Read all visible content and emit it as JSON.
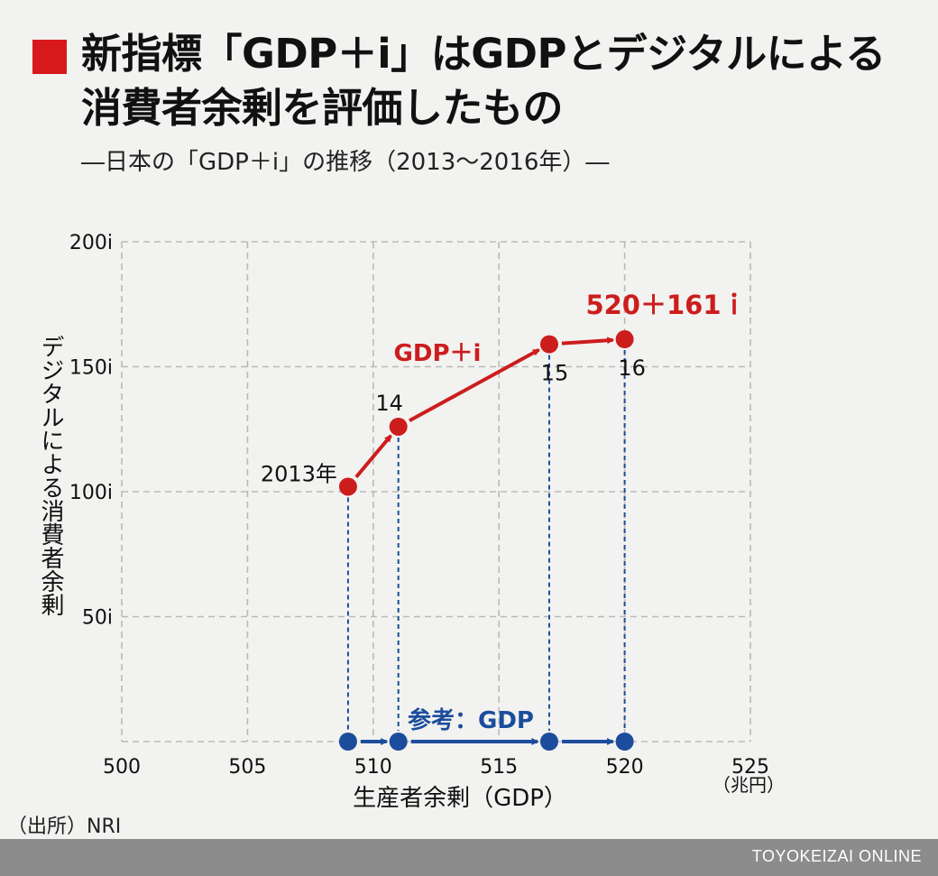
{
  "title": "新指標「GDP＋i」はGDPとデジタルによる\n消費者余剰を評価したもの",
  "subtitle": "―日本の「GDP＋i」の推移（2013〜2016年）―",
  "source": "（出所）NRI",
  "footer": "TOYOKEIZAI ONLINE",
  "colors": {
    "title_mark": "#d7191c",
    "gdp_i_series": "#cc1d1d",
    "gdp_series": "#1b4d9c",
    "grid": "#b9b9b9",
    "footer_bar": "#8c8c8c",
    "footer_text": "#ffffff"
  },
  "chart_data": {
    "type": "scatter",
    "xlabel": "生産者余剰（GDP）",
    "x_unit": "（兆円）",
    "ylabel": "デジタルによる消費者余剰",
    "xlim": [
      500,
      525
    ],
    "ylim": [
      0,
      200
    ],
    "x_ticks": [
      "500",
      "505",
      "510",
      "515",
      "520",
      "525"
    ],
    "y_ticks": [
      "50i",
      "100i",
      "150i",
      "200i"
    ],
    "grid": true,
    "series": [
      {
        "name": "GDP＋i",
        "points": [
          {
            "x": 509,
            "y": 102,
            "label": "2013年"
          },
          {
            "x": 511,
            "y": 126,
            "label": "14"
          },
          {
            "x": 517,
            "y": 159,
            "label": "15"
          },
          {
            "x": 520,
            "y": 161,
            "label": "16"
          }
        ]
      },
      {
        "name": "参考：GDP",
        "points": [
          {
            "x": 509,
            "y": 0
          },
          {
            "x": 511,
            "y": 0
          },
          {
            "x": 517,
            "y": 0
          },
          {
            "x": 520,
            "y": 0
          }
        ]
      }
    ],
    "annotations": [
      "520＋161ｉ"
    ]
  }
}
